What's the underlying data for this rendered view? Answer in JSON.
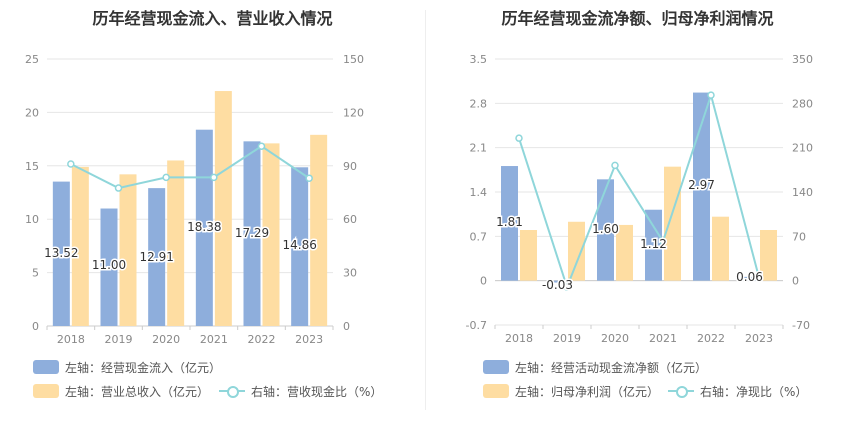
{
  "chart_data": [
    {
      "type": "bar",
      "title": "历年经营现金流入、营业收入情况",
      "categories": [
        "2018",
        "2019",
        "2020",
        "2021",
        "2022",
        "2023"
      ],
      "y_left": {
        "min": 0,
        "max": 25,
        "ticks": [
          "0",
          "5",
          "10",
          "15",
          "20",
          "25"
        ]
      },
      "y_right": {
        "min": 0,
        "max": 150,
        "ticks": [
          "0",
          "30",
          "60",
          "90",
          "120",
          "150"
        ]
      },
      "series": [
        {
          "name": "左轴：经营现金流入（亿元）",
          "type": "bar",
          "axis": "left",
          "color": "#8eaedc",
          "values": [
            13.52,
            11.0,
            12.91,
            18.38,
            17.29,
            14.86
          ],
          "labels": [
            "13.52",
            "11.00",
            "12.91",
            "18.38",
            "17.29",
            "14.86"
          ]
        },
        {
          "name": "左轴：营业总收入（亿元）",
          "type": "bar",
          "axis": "left",
          "color": "#fedda2",
          "values": [
            14.9,
            14.2,
            15.5,
            22.0,
            17.1,
            17.9
          ]
        },
        {
          "name": "右轴：营收现金比（%）",
          "type": "line",
          "axis": "right",
          "color": "#8fd6da",
          "values": [
            91,
            77.5,
            83.5,
            83.5,
            101,
            83
          ]
        }
      ]
    },
    {
      "type": "bar",
      "title": "历年经营现金流净额、归母净利润情况",
      "categories": [
        "2018",
        "2019",
        "2020",
        "2021",
        "2022",
        "2023"
      ],
      "y_left": {
        "min": -0.7,
        "max": 3.5,
        "ticks": [
          "-0.7",
          "0",
          "0.7",
          "1.4",
          "2.1",
          "2.8",
          "3.5"
        ]
      },
      "y_right": {
        "min": -70,
        "max": 350,
        "ticks": [
          "-70",
          "0",
          "70",
          "140",
          "210",
          "280",
          "350"
        ]
      },
      "series": [
        {
          "name": "左轴：经营活动现金流净额（亿元）",
          "type": "bar",
          "axis": "left",
          "color": "#8eaedc",
          "values": [
            1.81,
            -0.03,
            1.6,
            1.12,
            2.97,
            0.06
          ],
          "labels": [
            "1.81",
            "-0.03",
            "1.60",
            "1.12",
            "2.97",
            "0.06"
          ]
        },
        {
          "name": "左轴：归母净利润（亿元）",
          "type": "bar",
          "axis": "left",
          "color": "#fedda2",
          "values": [
            0.8,
            0.93,
            0.88,
            1.8,
            1.01,
            0.8
          ]
        },
        {
          "name": "右轴：净现比（%）",
          "type": "line",
          "axis": "right",
          "color": "#8fd6da",
          "values": [
            225,
            -10,
            182,
            62,
            293,
            5
          ]
        }
      ]
    }
  ]
}
